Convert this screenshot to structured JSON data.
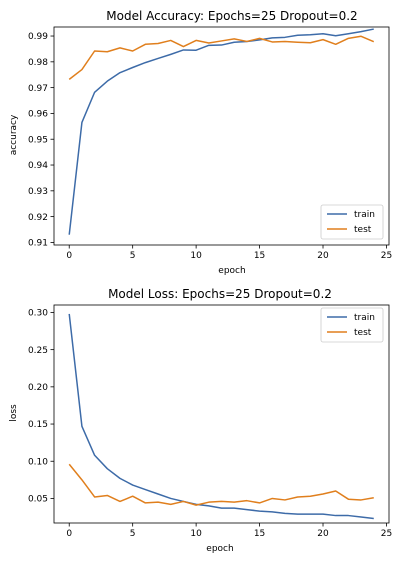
{
  "chart_data": [
    {
      "type": "line",
      "title": "Model Accuracy: Epochs=25 Dropout=0.2",
      "xlabel": "epoch",
      "ylabel": "accuracy",
      "xlim": [
        -1.2,
        25.2
      ],
      "ylim": [
        0.909,
        0.9935
      ],
      "xticks": [
        0,
        5,
        10,
        15,
        20,
        25
      ],
      "yticks": [
        0.91,
        0.92,
        0.93,
        0.94,
        0.95,
        0.96,
        0.97,
        0.98,
        0.99
      ],
      "ytick_labels": [
        "0.91",
        "0.92",
        "0.93",
        "0.94",
        "0.95",
        "0.96",
        "0.97",
        "0.98",
        "0.99"
      ],
      "legend": "lower-right",
      "grid": false,
      "series": [
        {
          "name": "train",
          "color": "#3d6ba8",
          "x": [
            0,
            1,
            2,
            3,
            4,
            5,
            6,
            7,
            8,
            9,
            10,
            11,
            12,
            13,
            14,
            15,
            16,
            17,
            18,
            19,
            20,
            21,
            22,
            23,
            24
          ],
          "y": [
            0.913,
            0.9565,
            0.9682,
            0.9725,
            0.9758,
            0.9778,
            0.9797,
            0.9813,
            0.9829,
            0.9846,
            0.9845,
            0.9864,
            0.9865,
            0.9876,
            0.9879,
            0.9885,
            0.9893,
            0.9895,
            0.9903,
            0.9905,
            0.9909,
            0.9901,
            0.9909,
            0.9917,
            0.9927
          ]
        },
        {
          "name": "test",
          "color": "#e07f1d",
          "x": [
            0,
            1,
            2,
            3,
            4,
            5,
            6,
            7,
            8,
            9,
            10,
            11,
            12,
            13,
            14,
            15,
            16,
            17,
            18,
            19,
            20,
            21,
            22,
            23,
            24
          ],
          "y": [
            0.9732,
            0.977,
            0.9842,
            0.9839,
            0.9854,
            0.9842,
            0.9868,
            0.9871,
            0.9883,
            0.9859,
            0.9883,
            0.9873,
            0.9881,
            0.9889,
            0.9879,
            0.9891,
            0.9877,
            0.9879,
            0.9876,
            0.9874,
            0.9886,
            0.9868,
            0.9891,
            0.9899,
            0.9878
          ]
        }
      ]
    },
    {
      "type": "line",
      "title": "Model Loss: Epochs=25 Dropout=0.2",
      "xlabel": "epoch",
      "ylabel": "loss",
      "xlim": [
        -1.2,
        25.2
      ],
      "ylim": [
        0.017,
        0.31
      ],
      "xticks": [
        0,
        5,
        10,
        15,
        20,
        25
      ],
      "yticks": [
        0.05,
        0.1,
        0.15,
        0.2,
        0.25,
        0.3
      ],
      "ytick_labels": [
        "0.05",
        "0.10",
        "0.15",
        "0.20",
        "0.25",
        "0.30"
      ],
      "legend": "upper-right",
      "grid": false,
      "series": [
        {
          "name": "train",
          "color": "#3d6ba8",
          "x": [
            0,
            1,
            2,
            3,
            4,
            5,
            6,
            7,
            8,
            9,
            10,
            11,
            12,
            13,
            14,
            15,
            16,
            17,
            18,
            19,
            20,
            21,
            22,
            23,
            24
          ],
          "y": [
            0.298,
            0.147,
            0.108,
            0.09,
            0.077,
            0.068,
            0.062,
            0.056,
            0.05,
            0.046,
            0.042,
            0.04,
            0.037,
            0.037,
            0.035,
            0.033,
            0.032,
            0.03,
            0.029,
            0.029,
            0.029,
            0.027,
            0.027,
            0.025,
            0.023
          ]
        },
        {
          "name": "test",
          "color": "#e07f1d",
          "x": [
            0,
            1,
            2,
            3,
            4,
            5,
            6,
            7,
            8,
            9,
            10,
            11,
            12,
            13,
            14,
            15,
            16,
            17,
            18,
            19,
            20,
            21,
            22,
            23,
            24
          ],
          "y": [
            0.096,
            0.075,
            0.052,
            0.054,
            0.046,
            0.053,
            0.044,
            0.045,
            0.042,
            0.046,
            0.041,
            0.045,
            0.046,
            0.045,
            0.047,
            0.044,
            0.05,
            0.048,
            0.052,
            0.053,
            0.056,
            0.06,
            0.049,
            0.048,
            0.051
          ]
        }
      ]
    }
  ]
}
